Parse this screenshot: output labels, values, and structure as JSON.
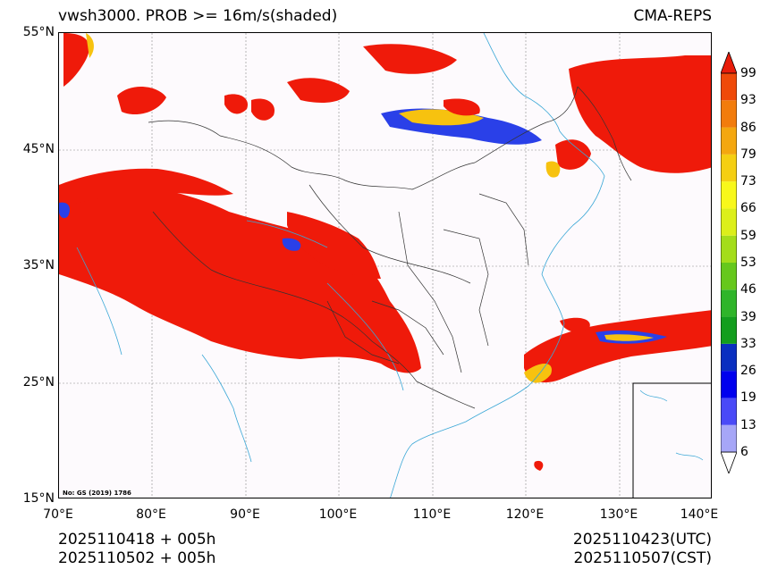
{
  "title_left": "vwsh3000. PROB >= 16m/s(shaded)",
  "title_right": "CMA-REPS",
  "lat_labels": [
    "55°N",
    "45°N",
    "35°N",
    "25°N",
    "15°N"
  ],
  "lon_labels": [
    "70°E",
    "80°E",
    "90°E",
    "100°E",
    "110°E",
    "120°E",
    "130°E",
    "140°E"
  ],
  "map_extent": {
    "lon": [
      70,
      140
    ],
    "lat": [
      15,
      55
    ]
  },
  "colorbar": {
    "levels": [
      "6",
      "13",
      "19",
      "26",
      "33",
      "39",
      "46",
      "53",
      "59",
      "66",
      "73",
      "79",
      "86",
      "93",
      "99"
    ],
    "colors": [
      "#a6a6f7",
      "#4a4af7",
      "#0000ee",
      "#0a2fc0",
      "#139e1e",
      "#2fb52a",
      "#66c81c",
      "#a4dd1a",
      "#dcef1a",
      "#f8f81a",
      "#f5cf12",
      "#f4a70f",
      "#f27c0c",
      "#ef4a0a",
      "#e81c0a"
    ]
  },
  "gs_note": "No: GS (2019) 1786",
  "footer": {
    "init_utc": "2025110418  +  005h",
    "init_cst": "2025110502  +  005h",
    "valid_utc": "2025110423(UTC)",
    "valid_cst": "2025110507(CST)"
  },
  "colors": {
    "high": "#ef1a0a",
    "mid": "#f7c20f",
    "low": "#2a40e8",
    "river": "#3aa7d6",
    "border": "#333333"
  }
}
